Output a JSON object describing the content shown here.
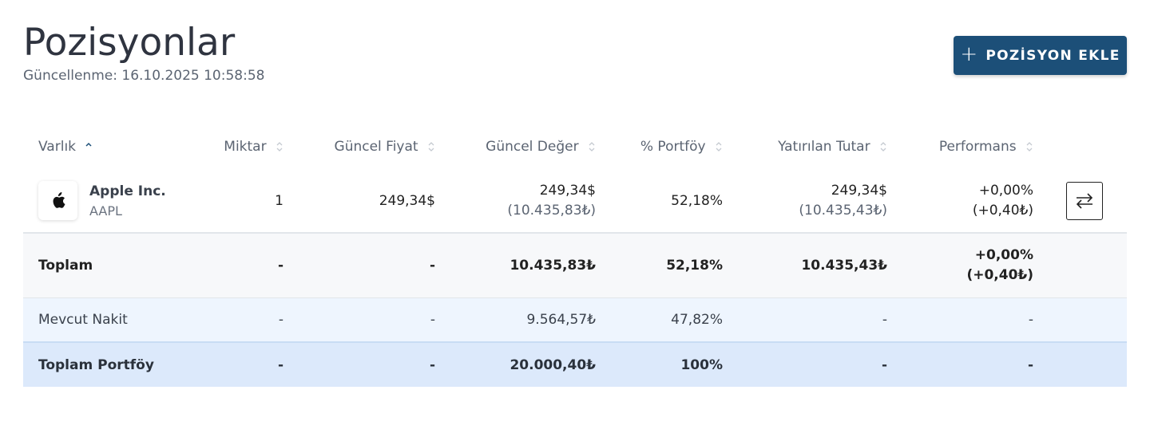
{
  "header": {
    "title": "Pozisyonlar",
    "updated_label": "Güncellenme:",
    "updated_value": "16.10.2025 10:58:58",
    "add_button_label": "POZİSYON EKLE",
    "add_button_icon": "plus-icon"
  },
  "colors": {
    "primary": "#1c4f78",
    "positive": "#12885a",
    "total_row_bg": "#f7f8fa",
    "cash_row_bg": "#eef5fe",
    "portfolio_row_bg": "#dce9fb"
  },
  "columns": {
    "asset": "Varlık",
    "quantity": "Miktar",
    "price": "Güncel Fiyat",
    "value": "Güncel Değer",
    "portfolio_pct": "% Portföy",
    "invested": "Yatırılan Tutar",
    "performance": "Performans"
  },
  "sort": {
    "active_column": "Varlık",
    "direction": "ascending"
  },
  "rows": {
    "asset": {
      "name": "Apple Inc.",
      "ticker": "AAPL",
      "logo_icon": "apple-logo-icon",
      "quantity": "1",
      "price": "249,34$",
      "value_usd": "249,34$",
      "value_try": "(10.435,83₺)",
      "portfolio_pct": "52,18%",
      "invested_usd": "249,34$",
      "invested_try": "(10.435,43₺)",
      "perf_pct": "+0,00%",
      "perf_try": "(+0,40₺)",
      "action_icon": "swap-arrows-icon"
    },
    "total": {
      "label": "Toplam",
      "quantity": "-",
      "price": "-",
      "value": "10.435,83₺",
      "portfolio_pct": "52,18%",
      "invested": "10.435,43₺",
      "perf_pct": "+0,00%",
      "perf_try": "(+0,40₺)"
    },
    "cash": {
      "label": "Mevcut Nakit",
      "quantity": "-",
      "price": "-",
      "value": "9.564,57₺",
      "portfolio_pct": "47,82%",
      "invested": "-",
      "performance": "-"
    },
    "portfolio": {
      "label": "Toplam Portföy",
      "quantity": "-",
      "price": "-",
      "value": "20.000,40₺",
      "portfolio_pct": "100%",
      "invested": "-",
      "performance": "-"
    }
  }
}
